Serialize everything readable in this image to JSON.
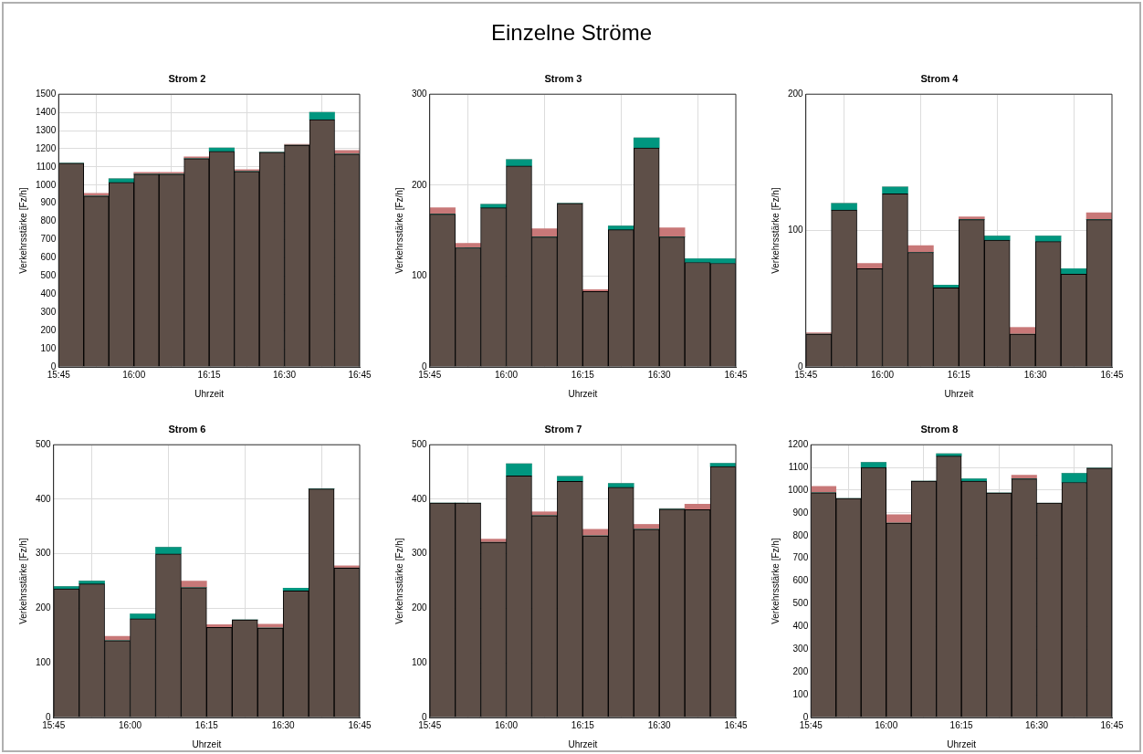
{
  "chart_data": [
    {
      "type": "other",
      "title": "Einzelne Ströme"
    },
    {
      "type": "bar",
      "title": "Strom 2",
      "xlabel": "Uhrzeit",
      "ylabel": "Verkehrsstärke [Fz/h]",
      "stacked": true,
      "grid": true,
      "x": [
        15.7917,
        15.875,
        15.9583,
        16.0417,
        16.125,
        16.2083,
        16.2917,
        16.375,
        16.4583,
        16.5417,
        16.625,
        16.7083
      ],
      "xlim": [
        15.75,
        16.75
      ],
      "xticks": [
        {
          "value": 15.75,
          "label": "15:45"
        },
        {
          "value": 16,
          "label": "16:00"
        },
        {
          "value": 16.25,
          "label": "16:15"
        },
        {
          "value": 16.5,
          "label": "16:30"
        },
        {
          "value": 16.75,
          "label": "16:45"
        }
      ],
      "ylim": [
        0,
        1500
      ],
      "yticks": [
        0,
        100,
        200,
        300,
        400,
        500,
        600,
        700,
        800,
        900,
        1000,
        1100,
        1200,
        1300,
        1400,
        1500
      ],
      "series": [
        {
          "color": "#5e4f48",
          "values": [
            1120,
            940,
            1015,
            1060,
            1060,
            1145,
            1185,
            1075,
            1180,
            1220,
            1360,
            1170
          ]
        },
        {
          "color": "#00967f",
          "values": [
            0,
            0,
            20,
            0,
            0,
            0,
            20,
            0,
            0,
            0,
            40,
            0
          ]
        },
        {
          "color": "#c87878",
          "values": [
            0,
            15,
            0,
            10,
            10,
            10,
            0,
            10,
            0,
            5,
            0,
            20
          ]
        }
      ]
    },
    {
      "type": "bar",
      "title": "Strom 3",
      "xlabel": "Uhrzeit",
      "ylabel": "Verkehrsstärke [Fz/h]",
      "stacked": true,
      "grid": true,
      "x": [
        15.7917,
        15.875,
        15.9583,
        16.0417,
        16.125,
        16.2083,
        16.2917,
        16.375,
        16.4583,
        16.5417,
        16.625,
        16.7083
      ],
      "xlim": [
        15.75,
        16.75
      ],
      "xticks": [
        {
          "value": 15.75,
          "label": "15:45"
        },
        {
          "value": 16,
          "label": "16:00"
        },
        {
          "value": 16.25,
          "label": "16:15"
        },
        {
          "value": 16.5,
          "label": "16:30"
        },
        {
          "value": 16.75,
          "label": "16:45"
        }
      ],
      "ylim": [
        0,
        300
      ],
      "yticks": [
        0,
        100,
        200,
        300
      ],
      "series": [
        {
          "color": "#5e4f48",
          "values": [
            168,
            131,
            175,
            221,
            143,
            180,
            83,
            151,
            241,
            143,
            115,
            114
          ]
        },
        {
          "color": "#00967f",
          "values": [
            0,
            0,
            4,
            7,
            0,
            0,
            0,
            4,
            11,
            0,
            4,
            5
          ]
        },
        {
          "color": "#c87878",
          "values": [
            7,
            5,
            0,
            0,
            9,
            0,
            2,
            0,
            0,
            10,
            0,
            0
          ]
        }
      ]
    },
    {
      "type": "bar",
      "title": "Strom 4",
      "xlabel": "Uhrzeit",
      "ylabel": "Verkehrsstärke [Fz/h]",
      "stacked": true,
      "grid": true,
      "x": [
        15.7917,
        15.875,
        15.9583,
        16.0417,
        16.125,
        16.2083,
        16.2917,
        16.375,
        16.4583,
        16.5417,
        16.625,
        16.7083
      ],
      "xlim": [
        15.75,
        16.75
      ],
      "xticks": [
        {
          "value": 15.75,
          "label": "15:45"
        },
        {
          "value": 16,
          "label": "16:00"
        },
        {
          "value": 16.25,
          "label": "16:15"
        },
        {
          "value": 16.5,
          "label": "16:30"
        },
        {
          "value": 16.75,
          "label": "16:45"
        }
      ],
      "ylim": [
        0,
        200
      ],
      "yticks": [
        0,
        100,
        200
      ],
      "series": [
        {
          "color": "#5e4f48",
          "values": [
            24,
            115,
            72,
            127,
            84,
            58,
            108,
            93,
            24,
            92,
            68,
            108
          ]
        },
        {
          "color": "#00967f",
          "values": [
            0,
            5,
            0,
            5,
            0,
            2,
            0,
            3,
            0,
            4,
            4,
            0
          ]
        },
        {
          "color": "#c87878",
          "values": [
            1,
            0,
            4,
            0,
            5,
            0,
            2,
            0,
            5,
            0,
            0,
            5
          ]
        }
      ]
    },
    {
      "type": "bar",
      "title": "Strom 6",
      "xlabel": "Uhrzeit",
      "ylabel": "Verkehrsstärke [Fz/h]",
      "stacked": true,
      "grid": true,
      "x": [
        15.7917,
        15.875,
        15.9583,
        16.0417,
        16.125,
        16.2083,
        16.2917,
        16.375,
        16.4583,
        16.5417,
        16.625,
        16.7083
      ],
      "xlim": [
        15.75,
        16.75
      ],
      "xticks": [
        {
          "value": 15.75,
          "label": "15:45"
        },
        {
          "value": 16,
          "label": "16:00"
        },
        {
          "value": 16.25,
          "label": "16:15"
        },
        {
          "value": 16.5,
          "label": "16:30"
        },
        {
          "value": 16.75,
          "label": "16:45"
        }
      ],
      "ylim": [
        0,
        500
      ],
      "yticks": [
        0,
        100,
        200,
        300,
        400,
        500
      ],
      "series": [
        {
          "color": "#5e4f48",
          "values": [
            236,
            245,
            141,
            181,
            300,
            238,
            165,
            179,
            164,
            232,
            419,
            274
          ]
        },
        {
          "color": "#00967f",
          "values": [
            4,
            5,
            0,
            9,
            12,
            0,
            0,
            0,
            0,
            5,
            0,
            0
          ]
        },
        {
          "color": "#c87878",
          "values": [
            0,
            0,
            8,
            0,
            0,
            12,
            5,
            0,
            7,
            0,
            0,
            4
          ]
        }
      ]
    },
    {
      "type": "bar",
      "title": "Strom 7",
      "xlabel": "Uhrzeit",
      "ylabel": "Verkehrsstärke [Fz/h]",
      "stacked": true,
      "grid": true,
      "x": [
        15.7917,
        15.875,
        15.9583,
        16.0417,
        16.125,
        16.2083,
        16.2917,
        16.375,
        16.4583,
        16.5417,
        16.625,
        16.7083
      ],
      "xlim": [
        15.75,
        16.75
      ],
      "xticks": [
        {
          "value": 15.75,
          "label": "15:45"
        },
        {
          "value": 16,
          "label": "16:00"
        },
        {
          "value": 16.25,
          "label": "16:15"
        },
        {
          "value": 16.5,
          "label": "16:30"
        },
        {
          "value": 16.75,
          "label": "16:45"
        }
      ],
      "ylim": [
        0,
        500
      ],
      "yticks": [
        0,
        100,
        200,
        300,
        400,
        500
      ],
      "series": [
        {
          "color": "#5e4f48",
          "values": [
            393,
            393,
            321,
            443,
            370,
            433,
            333,
            422,
            345,
            382,
            381,
            460
          ]
        },
        {
          "color": "#00967f",
          "values": [
            0,
            0,
            0,
            22,
            0,
            9,
            0,
            7,
            0,
            0,
            0,
            6
          ]
        },
        {
          "color": "#c87878",
          "values": [
            0,
            0,
            6,
            0,
            7,
            0,
            12,
            0,
            9,
            1,
            10,
            0
          ]
        }
      ]
    },
    {
      "type": "bar",
      "title": "Strom 8",
      "xlabel": "Uhrzeit",
      "ylabel": "Verkehrsstärke [Fz/h]",
      "stacked": true,
      "grid": true,
      "x": [
        15.7917,
        15.875,
        15.9583,
        16.0417,
        16.125,
        16.2083,
        16.2917,
        16.375,
        16.4583,
        16.5417,
        16.625,
        16.7083
      ],
      "xlim": [
        15.75,
        16.75
      ],
      "xticks": [
        {
          "value": 15.75,
          "label": "15:45"
        },
        {
          "value": 16,
          "label": "16:00"
        },
        {
          "value": 16.25,
          "label": "16:15"
        },
        {
          "value": 16.5,
          "label": "16:30"
        },
        {
          "value": 16.75,
          "label": "16:45"
        }
      ],
      "ylim": [
        0,
        1200
      ],
      "yticks": [
        0,
        100,
        200,
        300,
        400,
        500,
        600,
        700,
        800,
        900,
        1000,
        1100,
        1200
      ],
      "series": [
        {
          "color": "#5e4f48",
          "values": [
            989,
            964,
            1100,
            855,
            1040,
            1150,
            1040,
            988,
            1050,
            943,
            1034,
            1097
          ]
        },
        {
          "color": "#00967f",
          "values": [
            0,
            0,
            22,
            0,
            0,
            10,
            10,
            0,
            0,
            0,
            40,
            0
          ]
        },
        {
          "color": "#c87878",
          "values": [
            28,
            0,
            0,
            37,
            0,
            0,
            0,
            0,
            16,
            0,
            0,
            0
          ]
        }
      ]
    }
  ]
}
